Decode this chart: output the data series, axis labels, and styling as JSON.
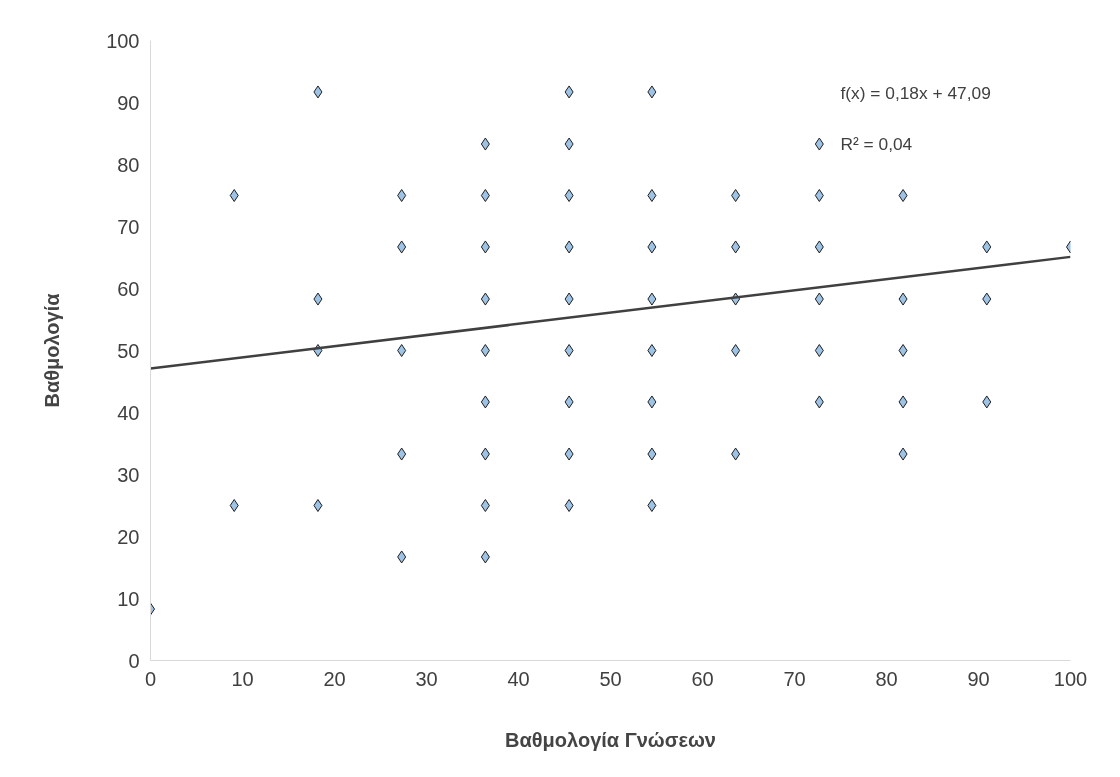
{
  "chart_data": {
    "type": "scatter",
    "xlabel": "Βαθμολογία Γνώσεων",
    "ylabel": "Βαθμολογία",
    "xlim": [
      0,
      100
    ],
    "ylim": [
      0,
      100
    ],
    "xticks": [
      0,
      10,
      20,
      30,
      40,
      50,
      60,
      70,
      80,
      90,
      100
    ],
    "yticks": [
      0,
      10,
      20,
      30,
      40,
      50,
      60,
      70,
      80,
      90,
      100
    ],
    "grid": false,
    "marker": "diamond",
    "annotations": [
      "f(x) = 0,18x + 47,09",
      "R² = 0,04"
    ],
    "series": [
      {
        "color": "#9dc3e6",
        "x": [
          0,
          9.1,
          9.1,
          18.2,
          18.2,
          18.2,
          18.2,
          27.3,
          27.3,
          27.3,
          27.3,
          27.3,
          36.4,
          36.4,
          36.4,
          36.4,
          36.4,
          36.4,
          36.4,
          36.4,
          36.4,
          45.5,
          45.5,
          45.5,
          45.5,
          45.5,
          45.5,
          45.5,
          45.5,
          45.5,
          54.5,
          54.5,
          54.5,
          54.5,
          54.5,
          54.5,
          54.5,
          54.5,
          63.6,
          63.6,
          63.6,
          63.6,
          63.6,
          72.7,
          72.7,
          72.7,
          72.7,
          72.7,
          72.7,
          81.8,
          81.8,
          81.8,
          81.8,
          81.8,
          90.9,
          90.9,
          90.9,
          100
        ],
        "values": [
          8.3,
          75,
          25,
          91.7,
          58.3,
          50,
          25,
          75,
          66.7,
          50,
          33.3,
          16.7,
          83.3,
          75,
          66.7,
          58.3,
          50,
          41.7,
          33.3,
          25,
          16.7,
          91.7,
          83.3,
          75,
          66.7,
          58.3,
          50,
          41.7,
          33.3,
          25,
          91.7,
          75,
          66.7,
          58.3,
          50,
          41.7,
          33.3,
          25,
          75,
          66.7,
          58.3,
          50,
          33.3,
          83.3,
          75,
          66.7,
          58.3,
          50,
          41.7,
          75,
          58.3,
          50,
          41.7,
          33.3,
          66.7,
          58.3,
          41.7,
          66.7
        ]
      },
      {
        "type": "line",
        "color": "#404040",
        "line_style": "solid",
        "marker": "none",
        "x": [
          0,
          100
        ],
        "values": [
          47.1,
          65.1
        ]
      }
    ]
  }
}
